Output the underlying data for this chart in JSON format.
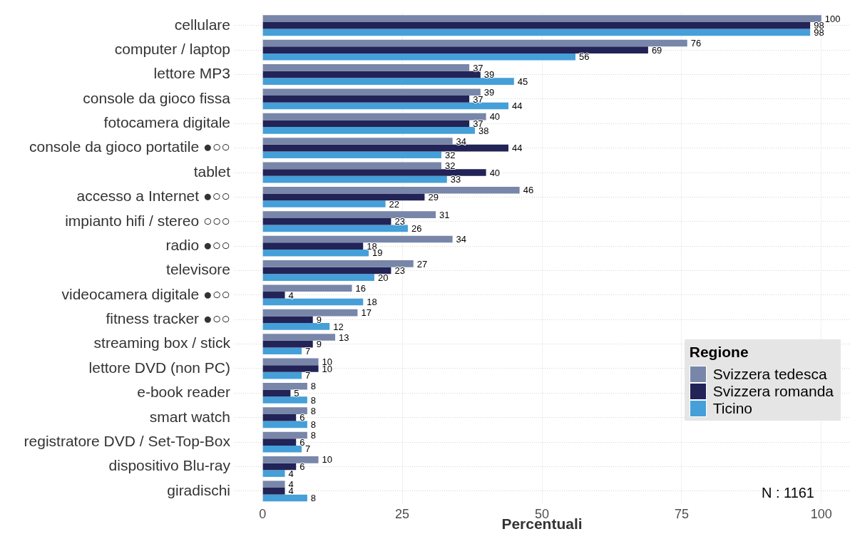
{
  "chart_data": {
    "type": "bar",
    "orientation": "horizontal",
    "categories": [
      "cellulare",
      "computer / laptop",
      "lettore MP3",
      "console da gioco fissa",
      "fotocamera digitale",
      "console da gioco portatile ●○○",
      "tablet",
      "accesso a Internet ●○○",
      "impianto hifi / stereo ○○○",
      "radio ●○○",
      "televisore",
      "videocamera digitale ●○○",
      "fitness tracker ●○○",
      "streaming box / stick",
      "lettore DVD (non PC)",
      "e-book reader",
      "smart watch",
      "registratore DVD / Set-Top-Box",
      "dispositivo Blu-ray",
      "giradischi"
    ],
    "series": [
      {
        "name": "Svizzera tedesca",
        "color": "#7886a9",
        "values": [
          100,
          76,
          37,
          39,
          40,
          34,
          32,
          46,
          31,
          34,
          27,
          16,
          17,
          13,
          10,
          8,
          8,
          8,
          10,
          4
        ]
      },
      {
        "name": "Svizzera romanda",
        "color": "#222356",
        "values": [
          98,
          69,
          39,
          37,
          37,
          44,
          40,
          29,
          23,
          18,
          23,
          4,
          9,
          9,
          10,
          5,
          6,
          6,
          6,
          4
        ]
      },
      {
        "name": "Ticino",
        "color": "#459fd8",
        "values": [
          98,
          56,
          45,
          44,
          38,
          32,
          33,
          22,
          26,
          19,
          20,
          18,
          12,
          7,
          7,
          8,
          8,
          7,
          4,
          8
        ]
      }
    ],
    "xlabel": "Percentuali",
    "legend_title": "Regione",
    "legend": "bottom right",
    "xlim": [
      -5,
      105
    ],
    "xticks": [
      0,
      25,
      50,
      75,
      100
    ],
    "grid": true,
    "data_labels": true,
    "annotations": [
      "N : 1161"
    ]
  }
}
